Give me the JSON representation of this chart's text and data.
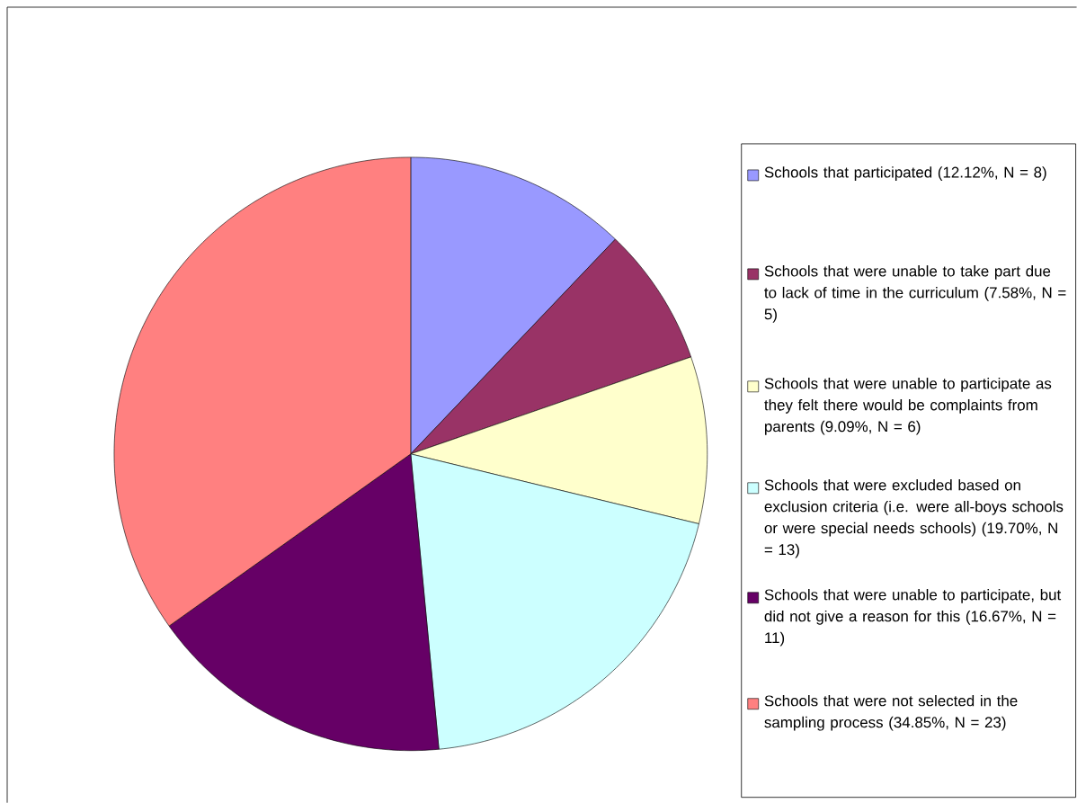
{
  "chart_data": {
    "type": "pie",
    "categories": [
      "Schools that participated (12.12%, N = 8)",
      "Schools that were unable to take part due to lack of time in the curriculum (7.58%, N = 5)",
      "Schools that were unable to participate as they felt there would be complaints from parents (9.09%, N = 6)",
      "Schools that were excluded based on exclusion criteria (i.e. were all-boys schools or were special needs schools) (19.70%, N = 13)",
      "Schools that were unable to participate, but did not give a reason for this (16.67%, N = 11)",
      "Schools that were not selected in the sampling process (34.85%, N = 23)"
    ],
    "values": [
      12.12,
      7.58,
      9.09,
      19.7,
      16.67,
      34.85
    ],
    "colors": [
      "#9999ff",
      "#993366",
      "#ffffcc",
      "#ccffff",
      "#660066",
      "#ff8080"
    ],
    "legend": "right"
  }
}
